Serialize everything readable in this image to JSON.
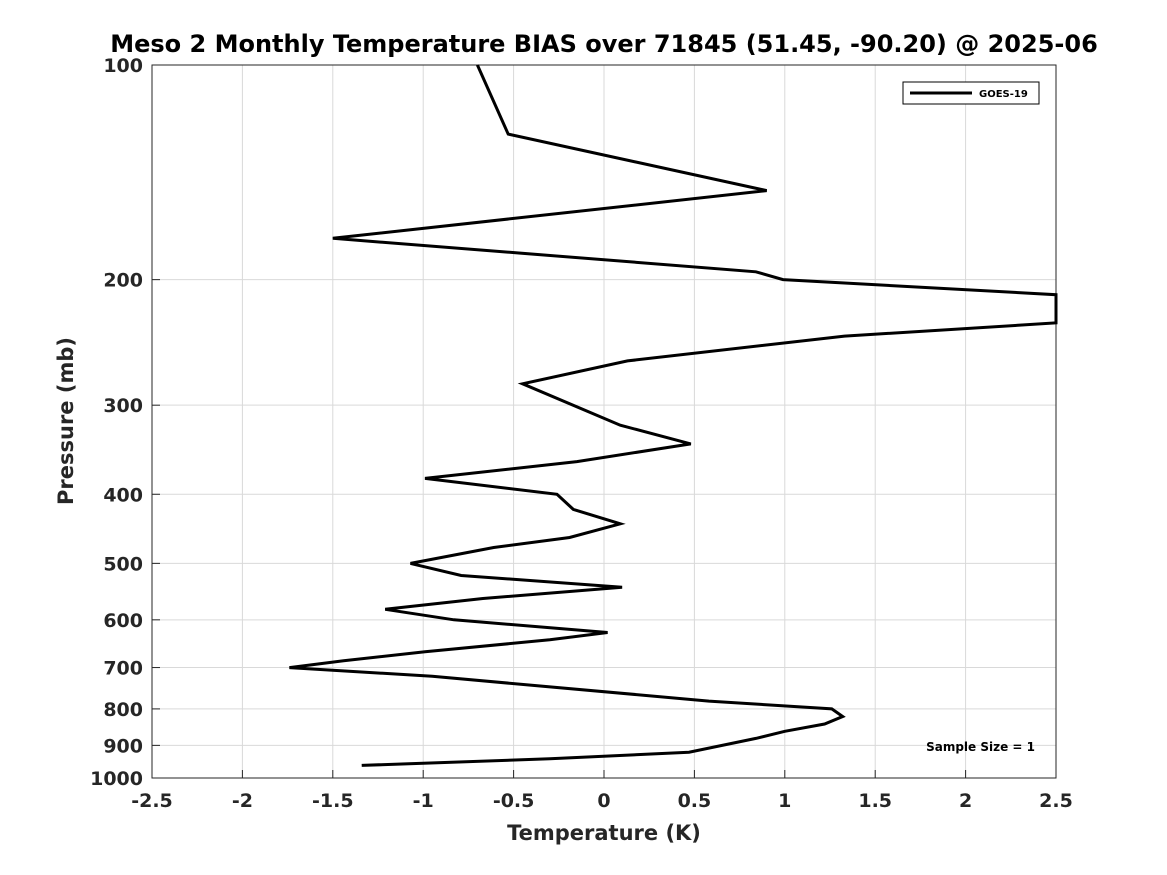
{
  "chart_data": {
    "type": "line",
    "title": "Meso 2 Monthly Temperature BIAS over 71845 (51.45, -90.20) @ 2025-06",
    "xlabel": "Temperature (K)",
    "ylabel": "Pressure (mb)",
    "xlim": [
      -2.5,
      2.5
    ],
    "ylim": [
      100,
      1000
    ],
    "yscale": "log",
    "y_reversed": true,
    "grid": true,
    "xticks": [
      -2.5,
      -2,
      -1.5,
      -1,
      -0.5,
      0,
      0.5,
      1,
      1.5,
      2,
      2.5
    ],
    "xtick_labels": [
      "-2.5",
      "-2",
      "-1.5",
      "-1",
      "-0.5",
      "0",
      "0.5",
      "1",
      "1.5",
      "2",
      "2.5"
    ],
    "yticks": [
      100,
      200,
      300,
      400,
      500,
      600,
      700,
      800,
      900,
      1000
    ],
    "ytick_labels": [
      "100",
      "200",
      "300",
      "400",
      "500",
      "600",
      "700",
      "800",
      "900",
      "1000"
    ],
    "legend_position": "top-right",
    "series": [
      {
        "name": "GOES-19",
        "color": "#000000",
        "points": [
          [
            -0.7,
            100
          ],
          [
            -0.53,
            125
          ],
          [
            0.9,
            150
          ],
          [
            -1.5,
            175
          ],
          [
            0.84,
            195
          ],
          [
            0.99,
            200
          ],
          [
            2.5,
            210
          ],
          [
            2.5,
            230
          ],
          [
            1.33,
            240
          ],
          [
            0.13,
            260
          ],
          [
            -0.45,
            280
          ],
          [
            0.09,
            320
          ],
          [
            0.48,
            340
          ],
          [
            -0.15,
            360
          ],
          [
            -0.99,
            380
          ],
          [
            -0.26,
            400
          ],
          [
            -0.17,
            420
          ],
          [
            0.09,
            440
          ],
          [
            -0.19,
            460
          ],
          [
            -0.61,
            475
          ],
          [
            -1.07,
            500
          ],
          [
            -0.79,
            520
          ],
          [
            0.1,
            540
          ],
          [
            -0.67,
            560
          ],
          [
            -1.21,
            580
          ],
          [
            -0.83,
            600
          ],
          [
            0.02,
            625
          ],
          [
            -0.3,
            640
          ],
          [
            -0.99,
            665
          ],
          [
            -1.44,
            685
          ],
          [
            -1.74,
            700
          ],
          [
            -0.95,
            720
          ],
          [
            0.58,
            780
          ],
          [
            1.26,
            800
          ],
          [
            1.32,
            820
          ],
          [
            1.22,
            840
          ],
          [
            1.0,
            860
          ],
          [
            0.84,
            880
          ],
          [
            0.47,
            920
          ],
          [
            -0.3,
            940
          ],
          [
            -1.34,
            960
          ]
        ]
      }
    ],
    "annotations": [
      "Sample Size = 1"
    ]
  }
}
